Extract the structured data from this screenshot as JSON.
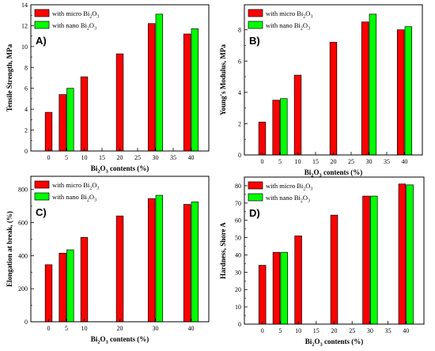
{
  "colors": {
    "micro": "#ff0000",
    "nano": "#00ff00"
  },
  "chart_data": [
    {
      "type": "bar",
      "panel_label": "A)",
      "ylabel": "Tensile Strength, MPa",
      "xlabel_pre": "Bi",
      "xlabel_sub1": "2",
      "xlabel_mid": "O",
      "xlabel_sub2": "3",
      "xlabel_post": " contents (%)",
      "ylim": [
        0,
        14
      ],
      "yticks": [
        "0",
        "2",
        "4",
        "6",
        "8",
        "10",
        "12",
        "14"
      ],
      "xlim": [
        -5,
        45
      ],
      "xticks": [
        "0",
        "5",
        "10",
        "15",
        "20",
        "25",
        "30",
        "35",
        "40"
      ],
      "legend": [
        {
          "text": "with micro Bi",
          "sub1": "2",
          "mid": "O",
          "sub2": "3",
          "color": "micro"
        },
        {
          "text": "with nano Bi",
          "sub1": "2",
          "mid": "O",
          "sub2": "3",
          "color": "nano"
        }
      ],
      "series": [
        {
          "color": "micro",
          "points": [
            [
              0,
              3.7
            ],
            [
              5,
              5.4
            ],
            [
              10,
              7.1
            ],
            [
              20,
              9.3
            ],
            [
              30,
              12.2
            ],
            [
              40,
              11.2
            ]
          ]
        },
        {
          "color": "nano",
          "points": [
            [
              5,
              6.0
            ],
            [
              30,
              13.1
            ],
            [
              40,
              11.7
            ]
          ]
        }
      ]
    },
    {
      "type": "bar",
      "panel_label": "B)",
      "ylabel": "Young's Modulus, MPa",
      "xlabel_pre": "Bi",
      "xlabel_sub1": "2",
      "xlabel_mid": "O",
      "xlabel_sub2": "3",
      "xlabel_post": " contents (%)",
      "ylim": [
        0,
        9.6
      ],
      "yticks": [
        "0",
        "2",
        "4",
        "6",
        "8"
      ],
      "xlim": [
        -5,
        45
      ],
      "xticks": [
        "0",
        "5",
        "10",
        "15",
        "20",
        "25",
        "30",
        "35",
        "40"
      ],
      "legend": [
        {
          "text": "with micro Bi",
          "sub1": "2",
          "mid": "O",
          "sub2": "3",
          "color": "micro"
        },
        {
          "text": "with nano Bi",
          "sub1": "2",
          "mid": "O",
          "sub2": "3",
          "color": "nano"
        }
      ],
      "series": [
        {
          "color": "micro",
          "points": [
            [
              0,
              2.1
            ],
            [
              5,
              3.5
            ],
            [
              10,
              5.1
            ],
            [
              20,
              7.2
            ],
            [
              30,
              8.5
            ],
            [
              40,
              8.0
            ]
          ]
        },
        {
          "color": "nano",
          "points": [
            [
              5,
              3.6
            ],
            [
              30,
              9.0
            ],
            [
              40,
              8.2
            ]
          ]
        }
      ]
    },
    {
      "type": "bar",
      "panel_label": "C)",
      "ylabel": "Elongation at break, (%)",
      "xlabel_pre": "Bi",
      "xlabel_sub1": "2",
      "xlabel_mid": "O",
      "xlabel_sub2": "3",
      "xlabel_post": " contents (%)",
      "ylim": [
        0,
        880
      ],
      "yticks": [
        "0",
        "200",
        "400",
        "600",
        "800"
      ],
      "xlim": [
        -5,
        45
      ],
      "xticks": [
        "0",
        "5",
        "10",
        "20",
        "30",
        "40"
      ],
      "legend": [
        {
          "text": "with micro Bi",
          "sub1": "2",
          "mid": "O",
          "sub2": "3",
          "color": "micro"
        },
        {
          "text": "with nano Bi",
          "sub1": "2",
          "mid": "O",
          "sub2": "3",
          "color": "nano"
        }
      ],
      "series": [
        {
          "color": "micro",
          "points": [
            [
              0,
              345
            ],
            [
              5,
              415
            ],
            [
              10,
              510
            ],
            [
              20,
              640
            ],
            [
              30,
              745
            ],
            [
              40,
              710
            ]
          ]
        },
        {
          "color": "nano",
          "points": [
            [
              5,
              435
            ],
            [
              30,
              765
            ],
            [
              40,
              725
            ]
          ]
        }
      ]
    },
    {
      "type": "bar",
      "panel_label": "D)",
      "ylabel": "Hardness, Shore A",
      "xlabel_pre": "Bi",
      "xlabel_sub1": "2",
      "xlabel_mid": "O",
      "xlabel_sub2": "3",
      "xlabel_post": " contents (%)",
      "ylim": [
        0,
        85
      ],
      "yticks": [
        "0",
        "10",
        "20",
        "30",
        "40",
        "50",
        "60",
        "70",
        "80"
      ],
      "xlim": [
        -5,
        45
      ],
      "xticks": [
        "0",
        "5",
        "10",
        "15",
        "20",
        "25",
        "30",
        "35",
        "40"
      ],
      "legend": [
        {
          "text": "with micro Bi",
          "sub1": "2",
          "mid": "O",
          "sub2": "3",
          "color": "micro"
        },
        {
          "text": "with nano Bi",
          "sub1": "2",
          "mid": "O",
          "sub2": "3",
          "color": "nano"
        }
      ],
      "series": [
        {
          "color": "micro",
          "points": [
            [
              0,
              34
            ],
            [
              5,
              41.5
            ],
            [
              10,
              51
            ],
            [
              20,
              63
            ],
            [
              30,
              74
            ],
            [
              40,
              81
            ]
          ]
        },
        {
          "color": "nano",
          "points": [
            [
              5,
              41.5
            ],
            [
              30,
              74
            ],
            [
              40,
              80.5
            ]
          ]
        }
      ]
    }
  ]
}
